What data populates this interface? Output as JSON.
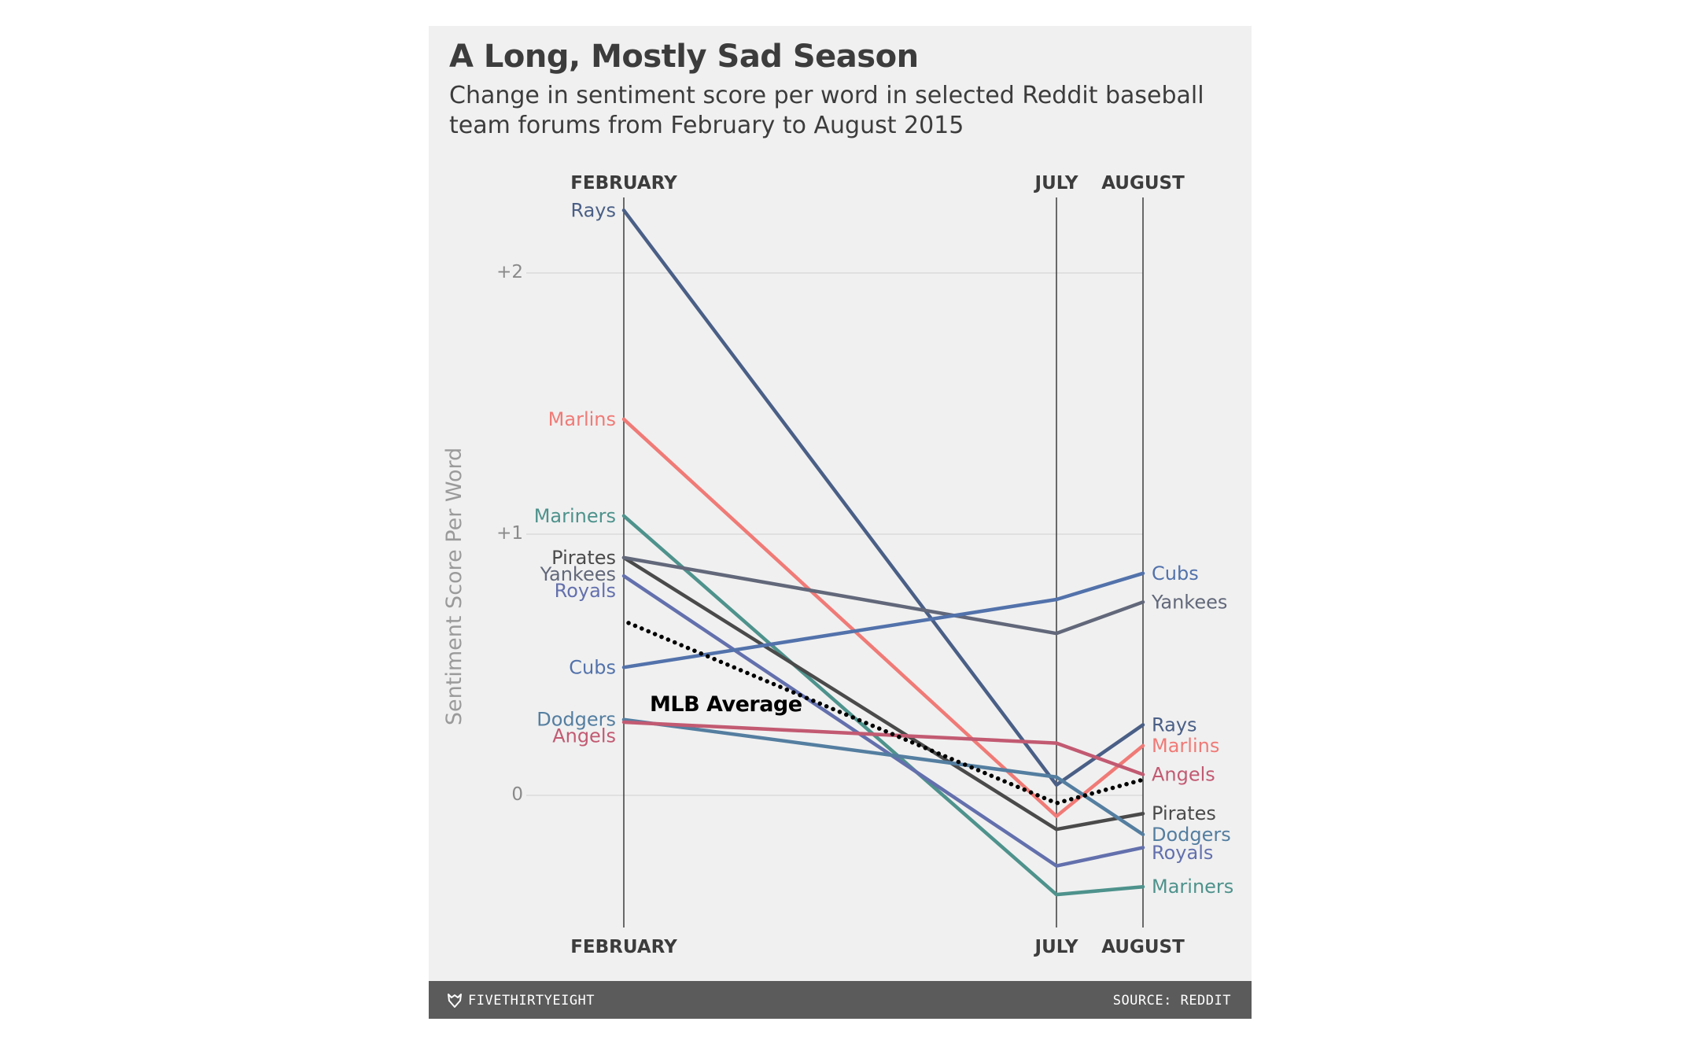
{
  "title": "A Long, Mostly Sad Season",
  "subtitle": "Change in sentiment score per word in selected Reddit baseball team forums from February to August 2015",
  "footer": {
    "brand": "FIVETHIRTYEIGHT",
    "source": "SOURCE: REDDIT"
  },
  "chart_data": {
    "type": "line",
    "x": [
      "FEBRUARY",
      "JULY",
      "AUGUST"
    ],
    "ylabel": "Sentiment Score Per Word",
    "yticks": [
      {
        "value": 0,
        "label": "0"
      },
      {
        "value": 1,
        "label": "+1"
      },
      {
        "value": 2,
        "label": "+2"
      }
    ],
    "ylim": [
      -0.5,
      2.3
    ],
    "grid": true,
    "series": [
      {
        "name": "Rays",
        "values": [
          2.24,
          0.04,
          0.27
        ],
        "color": "#4a5f86"
      },
      {
        "name": "Marlins",
        "values": [
          1.44,
          -0.08,
          0.19
        ],
        "color": "#f07a76"
      },
      {
        "name": "Mariners",
        "values": [
          1.07,
          -0.38,
          -0.35
        ],
        "color": "#4e928c"
      },
      {
        "name": "Pirates",
        "values": [
          0.91,
          -0.13,
          -0.07
        ],
        "color": "#4a4a4a"
      },
      {
        "name": "Yankees",
        "values": [
          0.91,
          0.62,
          0.74
        ],
        "color": "#62687a"
      },
      {
        "name": "Royals",
        "values": [
          0.84,
          -0.27,
          -0.2
        ],
        "color": "#6370ad"
      },
      {
        "name": "Cubs",
        "values": [
          0.49,
          0.75,
          0.85
        ],
        "color": "#5272ab"
      },
      {
        "name": "Dodgers",
        "values": [
          0.29,
          0.07,
          -0.15
        ],
        "color": "#547ea0"
      },
      {
        "name": "Angels",
        "values": [
          0.28,
          0.2,
          0.08
        ],
        "color": "#c25a72"
      },
      {
        "name": "MLB Average",
        "values": [
          0.66,
          -0.03,
          0.06
        ],
        "color": "#000000"
      }
    ]
  }
}
